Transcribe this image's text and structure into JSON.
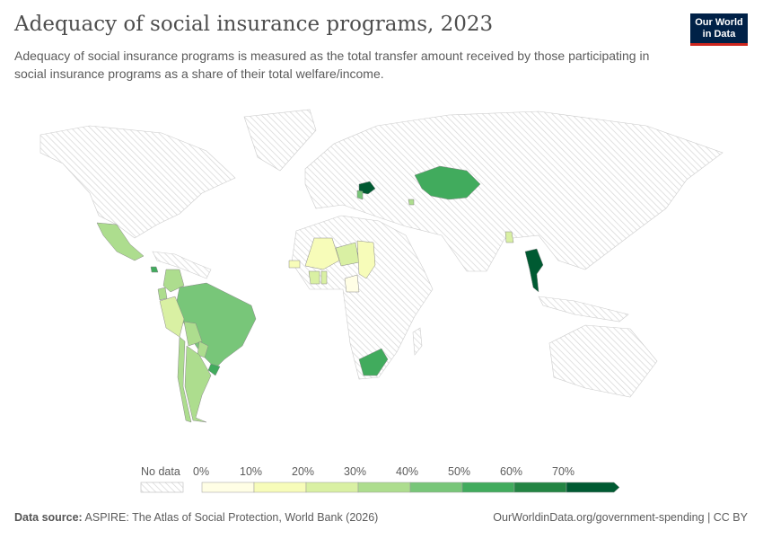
{
  "header": {
    "title": "Adequacy of social insurance programs, 2023",
    "subtitle": "Adequacy of social insurance programs is measured as the total transfer amount received by those participating in social insurance programs as a share of their total welfare/income.",
    "logo": "Our World in Data"
  },
  "legend": {
    "no_data": "No data",
    "ticks": [
      "0%",
      "10%",
      "20%",
      "30%",
      "40%",
      "50%",
      "60%",
      "70%"
    ],
    "colors": [
      "#fffee5",
      "#f7fcb9",
      "#d9f0a3",
      "#addd8e",
      "#78c679",
      "#41ab5d",
      "#238443",
      "#005a32"
    ],
    "no_data_color": "#e6e6e6"
  },
  "chart_data": {
    "type": "choropleth",
    "unit": "%",
    "bins": [
      0,
      10,
      20,
      30,
      40,
      50,
      60,
      70
    ],
    "values": {
      "Kazakhstan": 55,
      "Romania": 75,
      "Serbia": 45,
      "Armenia": 35,
      "Bangladesh": 22,
      "Thailand": 75,
      "Mali": 15,
      "Niger": 25,
      "Chad": 15,
      "Senegal": 15,
      "Cote d'Ivoire": 25,
      "Ghana": 25,
      "Central African Republic": 5,
      "South Africa": 55,
      "Mexico": 35,
      "Costa Rica": 55,
      "Colombia": 35,
      "Ecuador": 35,
      "Brazil": 45,
      "Peru": 25,
      "Bolivia": 35,
      "Paraguay": 35,
      "Uruguay": 55,
      "Argentina": 35,
      "Chile": 35
    }
  },
  "footer": {
    "source_label": "Data source:",
    "source": "ASPIRE: The Atlas of Social Protection, World Bank (2026)",
    "right": "OurWorldinData.org/government-spending | CC BY"
  }
}
